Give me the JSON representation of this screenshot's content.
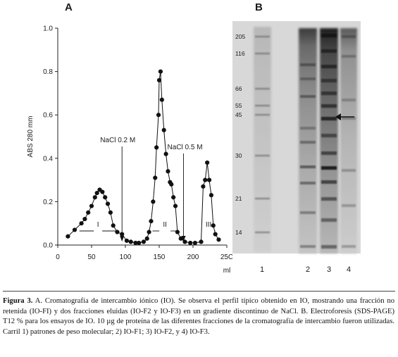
{
  "panels": {
    "a_letter": "A",
    "b_letter": "B"
  },
  "chart_data": {
    "type": "scatter",
    "xlabel": "ml",
    "ylabel": "ABS 280 mm",
    "xlim": [
      0,
      250
    ],
    "ylim": [
      0,
      1.0
    ],
    "x_ticks": [
      "0",
      "50",
      "100",
      "150",
      "200",
      "25C"
    ],
    "y_ticks": [
      "0.0",
      "0.2",
      "0.4",
      "0.6",
      "0.8",
      "1.0"
    ],
    "points": [
      [
        15,
        0.04
      ],
      [
        25,
        0.07
      ],
      [
        35,
        0.1
      ],
      [
        40,
        0.12
      ],
      [
        45,
        0.15
      ],
      [
        50,
        0.18
      ],
      [
        55,
        0.22
      ],
      [
        58,
        0.24
      ],
      [
        62,
        0.255
      ],
      [
        66,
        0.245
      ],
      [
        70,
        0.22
      ],
      [
        74,
        0.19
      ],
      [
        78,
        0.15
      ],
      [
        82,
        0.09
      ],
      [
        88,
        0.06
      ],
      [
        95,
        0.05
      ],
      [
        102,
        0.02
      ],
      [
        108,
        0.015
      ],
      [
        115,
        0.01
      ],
      [
        120,
        0.01
      ],
      [
        127,
        0.015
      ],
      [
        132,
        0.03
      ],
      [
        135,
        0.06
      ],
      [
        138,
        0.11
      ],
      [
        141,
        0.2
      ],
      [
        144,
        0.31
      ],
      [
        146,
        0.45
      ],
      [
        149,
        0.6
      ],
      [
        150,
        0.76
      ],
      [
        152,
        0.8
      ],
      [
        154,
        0.67
      ],
      [
        157,
        0.53
      ],
      [
        160,
        0.42
      ],
      [
        163,
        0.34
      ],
      [
        166,
        0.29
      ],
      [
        168,
        0.28
      ],
      [
        171,
        0.22
      ],
      [
        174,
        0.18
      ],
      [
        177,
        0.06
      ],
      [
        182,
        0.03
      ],
      [
        188,
        0.015
      ],
      [
        196,
        0.01
      ],
      [
        203,
        0.01
      ],
      [
        212,
        0.015
      ],
      [
        215,
        0.27
      ],
      [
        218,
        0.3
      ],
      [
        221,
        0.38
      ],
      [
        224,
        0.3
      ],
      [
        227,
        0.23
      ],
      [
        230,
        0.09
      ],
      [
        233,
        0.05
      ],
      [
        238,
        0.025
      ]
    ],
    "annotations": [
      {
        "text": "NaCl 0.2 M",
        "x": 95
      },
      {
        "text": "NaCl 0.5 M",
        "x": 186
      }
    ],
    "fractions": [
      {
        "label": "I",
        "from": 32,
        "to": 87
      },
      {
        "label": "II",
        "from": 140,
        "to": 177
      },
      {
        "label": "III",
        "from": 213,
        "to": 233
      }
    ]
  },
  "gel": {
    "markers": [
      "205",
      "116",
      "66",
      "55",
      "45",
      "30",
      "21",
      "14"
    ],
    "lanes": [
      "1",
      "2",
      "3",
      "4"
    ]
  },
  "caption": {
    "label": "Figura 3.",
    "text": " A. Cromatografía de intercambio iónico (IO). Se observa el perfil típico obtenido en IO, mostrando una fracción no retenida (IO-FI) y dos fracciones eluidas (IO-F2 y IO-F3) en un gradiente discontinuo de NaCl. B. Electroforesis (SDS-PAGE) T12 % para los ensayos de IO. 10 µg de proteína de las diferentes fracciones de la cromatografía de intercambio fueron utilizadas. Carril 1) patrones de peso molecular; 2) IO-F1; 3) IO-F2, y 4) IO-F3."
  }
}
